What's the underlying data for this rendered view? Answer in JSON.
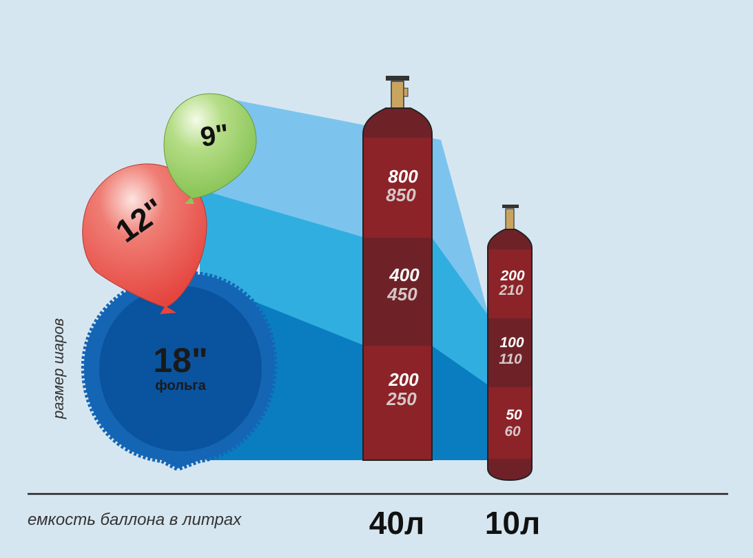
{
  "balloons": [
    {
      "label": "9\"",
      "color": "#a6d672"
    },
    {
      "label": "12\"",
      "color": "#ec6b63"
    },
    {
      "label": "18\"",
      "sublabel": "фольга",
      "color": "#0a57a4"
    }
  ],
  "y_label": "размер шаров",
  "x_label": "емкость баллона в литрах",
  "cylinders": [
    {
      "label": "40л",
      "sections": [
        {
          "primary": "800",
          "secondary": "850"
        },
        {
          "primary": "400",
          "secondary": "450"
        },
        {
          "primary": "200",
          "secondary": "250"
        }
      ]
    },
    {
      "label": "10л",
      "sections": [
        {
          "primary": "200",
          "secondary": "210"
        },
        {
          "primary": "100",
          "secondary": "110"
        },
        {
          "primary": "50",
          "secondary": "60"
        }
      ]
    }
  ],
  "colors": {
    "cylinder": "#8b2328",
    "cylinder_dark": "#6e2228",
    "valve": "#c9a461",
    "band_light": "#7cc4ee",
    "band_mid": "#31aee0",
    "band_dark": "#0a7dc0",
    "background": "#d6e6f0"
  }
}
